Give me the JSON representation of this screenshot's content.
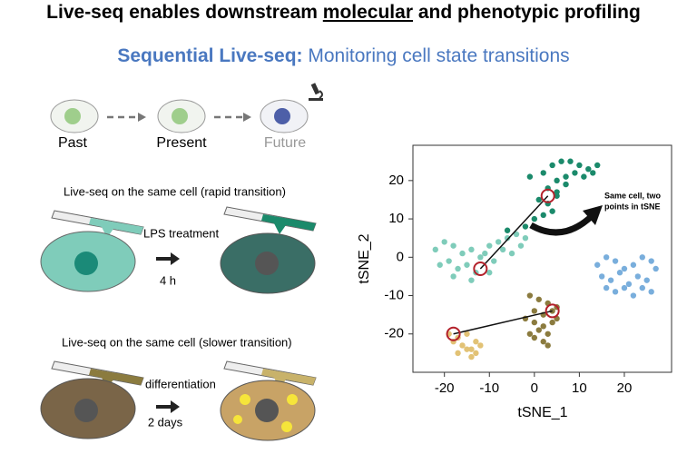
{
  "title": {
    "parts": [
      "Live-seq enables downstream ",
      "molecular",
      " and phenotypic profiling"
    ]
  },
  "subtitle": {
    "bold": "Sequential Live-seq:",
    "rest": " Monitoring cell state transitions"
  },
  "timeline": {
    "labels": [
      "Past",
      "Present",
      "Future"
    ]
  },
  "panels": [
    {
      "heading": "Live-seq on the same cell (rapid transition)",
      "treatment": "LPS treatment",
      "duration": "4 h"
    },
    {
      "heading": "Live-seq on the same cell (slower transition)",
      "treatment": "differentiation",
      "duration": "2 days"
    }
  ],
  "chart_data": {
    "type": "scatter",
    "xlabel": "tSNE_1",
    "ylabel": "tSNE_2",
    "xlim": [
      -27,
      30.5
    ],
    "ylim": [
      -30,
      29.2
    ],
    "xticks": [
      -20,
      -10,
      0,
      10,
      20
    ],
    "yticks": [
      -20,
      -10,
      0,
      10,
      20
    ],
    "series": [
      {
        "color": "#1b8a6b",
        "x": [
          2,
          4,
          6,
          8,
          10,
          12,
          13,
          5,
          7,
          9,
          11,
          3,
          5,
          7,
          1,
          3,
          5,
          4,
          2,
          0,
          -2,
          -6,
          -1,
          14
        ],
        "y": [
          22,
          24,
          25,
          25,
          24,
          23,
          22,
          20,
          21,
          22,
          21,
          18,
          17,
          19,
          15,
          14,
          16,
          12,
          11,
          10,
          8,
          7,
          21,
          24
        ]
      },
      {
        "color": "#7fccba",
        "x": [
          -22,
          -20,
          -18,
          -16,
          -14,
          -12,
          -10,
          -8,
          -6,
          -4,
          -21,
          -19,
          -17,
          -15,
          -13,
          -11,
          -9,
          -7,
          -5,
          -3,
          -18,
          -14,
          -10,
          -2
        ],
        "y": [
          2,
          4,
          3,
          1,
          2,
          0,
          3,
          4,
          5,
          6,
          -2,
          -1,
          -3,
          -2,
          -4,
          1,
          -1,
          2,
          1,
          3,
          -5,
          -6,
          -4,
          5
        ]
      },
      {
        "color": "#79aedc",
        "x": [
          14,
          16,
          18,
          20,
          22,
          24,
          26,
          15,
          17,
          19,
          21,
          23,
          25,
          27,
          18,
          20,
          22,
          24,
          16,
          26
        ],
        "y": [
          -2,
          0,
          -1,
          -3,
          -2,
          0,
          -1,
          -5,
          -6,
          -4,
          -7,
          -5,
          -6,
          -3,
          -9,
          -8,
          -10,
          -8,
          -8,
          -9
        ]
      },
      {
        "color": "#8b7b3f",
        "x": [
          -1,
          1,
          3,
          5,
          0,
          2,
          4,
          -2,
          0,
          2,
          4,
          1,
          3,
          -1,
          2,
          0,
          3,
          5
        ],
        "y": [
          -10,
          -11,
          -12,
          -13,
          -14,
          -15,
          -14,
          -16,
          -17,
          -18,
          -17,
          -19,
          -20,
          -20,
          -22,
          -21,
          -23,
          -16
        ]
      },
      {
        "color": "#e2c275",
        "x": [
          -19,
          -17,
          -15,
          -13,
          -18,
          -16,
          -14,
          -12,
          -17,
          -15,
          -13,
          -14
        ],
        "y": [
          -20,
          -21,
          -20,
          -22,
          -22,
          -23,
          -24,
          -23,
          -25,
          -24,
          -25,
          -26
        ]
      }
    ],
    "highlights": {
      "color": "#b3202a",
      "x": [
        3,
        -12,
        4,
        -18
      ],
      "y": [
        16,
        -3,
        -14,
        -20
      ]
    },
    "annotation": [
      "Same cell, two",
      "points in tSNE"
    ]
  }
}
